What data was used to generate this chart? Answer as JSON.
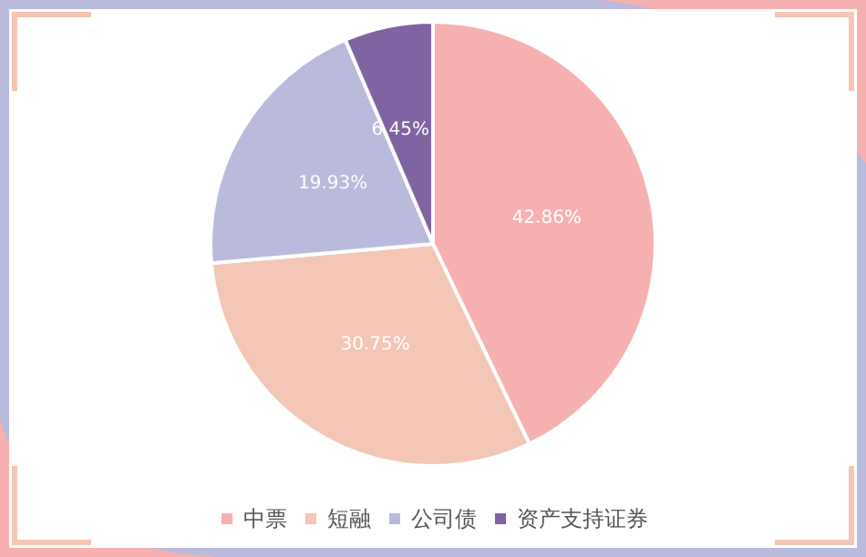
{
  "chart_data": {
    "type": "pie",
    "categories": [
      "中票",
      "短融",
      "公司债",
      "资产支持证券"
    ],
    "values": [
      42.86,
      30.75,
      19.93,
      6.45
    ],
    "colors": [
      "#f7b0b0",
      "#f4c6b5",
      "#babadd",
      "#8064a2"
    ],
    "value_labels": [
      "42.86%",
      "30.75%",
      "19.93%",
      "6.45%"
    ],
    "legend": "bottom"
  }
}
